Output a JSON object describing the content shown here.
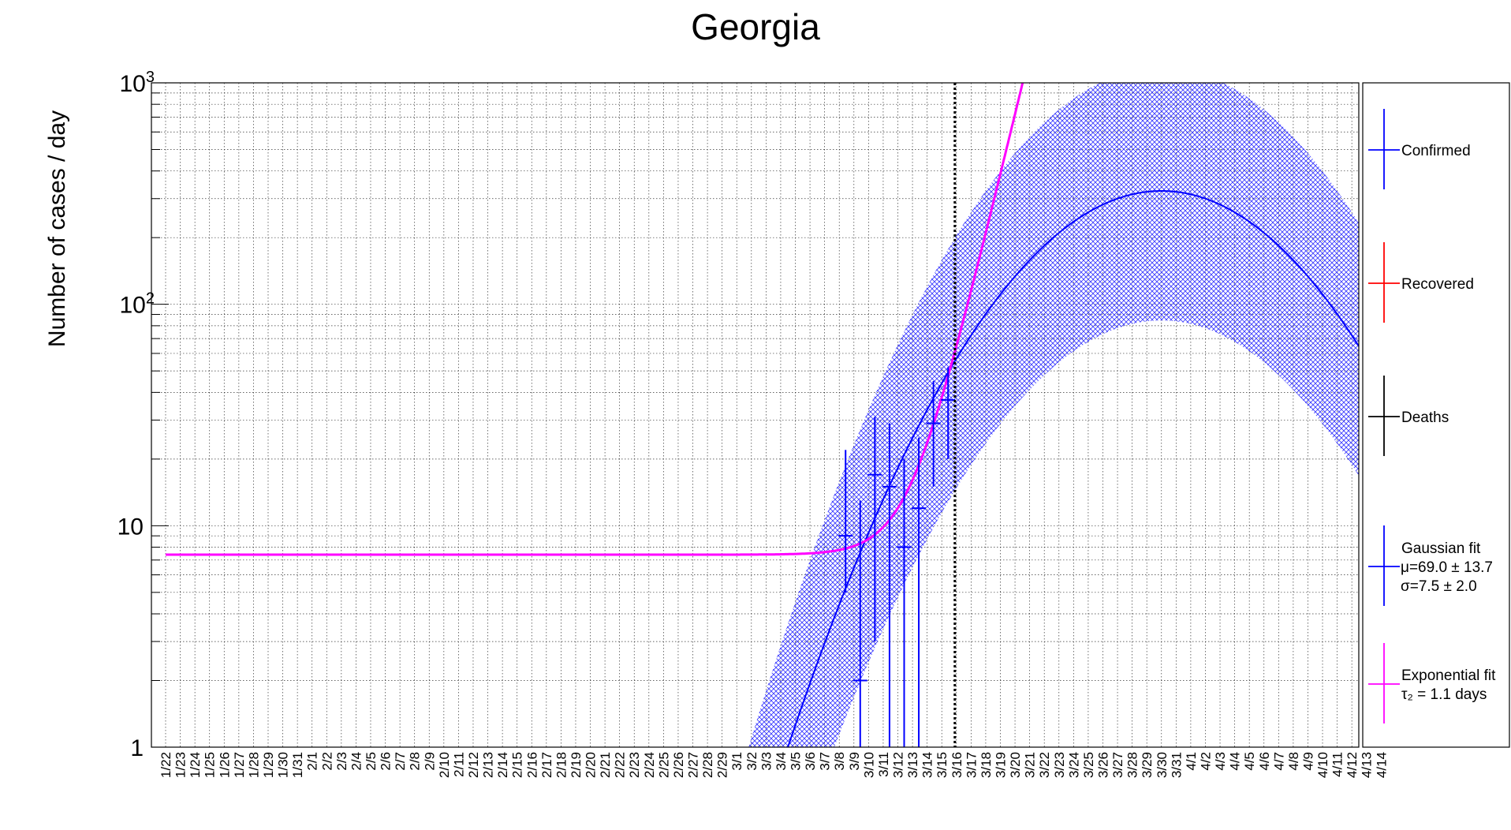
{
  "chart_data": {
    "type": "line",
    "title": "Georgia",
    "xlabel": "",
    "ylabel": "Number of cases / day",
    "y_scale": "log",
    "ylim": [
      1,
      1000
    ],
    "y_ticks": [
      {
        "value": 1,
        "label": "1"
      },
      {
        "value": 10,
        "label": "10"
      },
      {
        "value": 100,
        "label": "10",
        "sup": "2"
      },
      {
        "value": 1000,
        "label": "10",
        "sup": "3"
      }
    ],
    "grid": true,
    "legend_position": "right",
    "x_categories": [
      "1/22",
      "1/23",
      "1/24",
      "1/25",
      "1/26",
      "1/27",
      "1/28",
      "1/29",
      "1/30",
      "1/31",
      "2/1",
      "2/2",
      "2/3",
      "2/4",
      "2/5",
      "2/6",
      "2/7",
      "2/8",
      "2/9",
      "2/10",
      "2/11",
      "2/12",
      "2/13",
      "2/14",
      "2/15",
      "2/16",
      "2/17",
      "2/18",
      "2/19",
      "2/20",
      "2/21",
      "2/22",
      "2/23",
      "2/24",
      "2/25",
      "2/26",
      "2/27",
      "2/28",
      "2/29",
      "3/1",
      "3/2",
      "3/3",
      "3/4",
      "3/5",
      "3/6",
      "3/7",
      "3/8",
      "3/9",
      "3/10",
      "3/11",
      "3/12",
      "3/13",
      "3/14",
      "3/15",
      "3/16",
      "3/17",
      "3/18",
      "3/19",
      "3/20",
      "3/21",
      "3/22",
      "3/23",
      "3/24",
      "3/25",
      "3/26",
      "3/27",
      "3/28",
      "3/29",
      "3/30",
      "3/31",
      "4/1",
      "4/2",
      "4/3",
      "4/4",
      "4/5",
      "4/6",
      "4/7",
      "4/8",
      "4/9",
      "4/10",
      "4/11",
      "4/12",
      "4/13",
      "4/14"
    ],
    "fit_cutoff_date": "3/16",
    "confirmed": [
      {
        "date": "3/8",
        "value": 9,
        "err_low": 5,
        "err_high": 22
      },
      {
        "date": "3/9",
        "value": 2,
        "err_low": 1,
        "err_high": 13
      },
      {
        "date": "3/10",
        "value": 17,
        "err_low": 3,
        "err_high": 31
      },
      {
        "date": "3/11",
        "value": 15,
        "err_low": 1,
        "err_high": 29
      },
      {
        "date": "3/12",
        "value": 8,
        "err_low": 1,
        "err_high": 20
      },
      {
        "date": "3/13",
        "value": 12,
        "err_low": 1,
        "err_high": 25
      },
      {
        "date": "3/14",
        "value": 29,
        "err_low": 15,
        "err_high": 45
      },
      {
        "date": "3/15",
        "value": 37,
        "err_low": 20,
        "err_high": 52
      }
    ],
    "gaussian_fit": {
      "mu": 69.0,
      "sigma": 7.5,
      "peak": 325,
      "band_upper_factor": 3.6,
      "band_lower_factor": 0.26
    },
    "exponential_fit": {
      "baseline": 7.4,
      "doubling_time_days": 1.1,
      "value_at_3_15": 38
    },
    "series": [
      {
        "name": "Confirmed",
        "color": "#0000ff"
      },
      {
        "name": "Recovered",
        "color": "#ff0000"
      },
      {
        "name": "Deaths",
        "color": "#000000"
      },
      {
        "name": "Gaussian fit",
        "color": "#0000ff"
      },
      {
        "name": "Exponential fit",
        "color": "#ff00ff"
      }
    ],
    "legend": [
      {
        "name": "Confirmed",
        "color": "#0000ff",
        "lines": [
          "Confirmed"
        ]
      },
      {
        "name": "Recovered",
        "color": "#ff0000",
        "lines": [
          "Recovered"
        ]
      },
      {
        "name": "Deaths",
        "color": "#000000",
        "lines": [
          "Deaths"
        ]
      },
      {
        "name": "Gaussian fit",
        "color": "#0000ff",
        "lines": [
          "Gaussian fit",
          "μ=69.0 ± 13.7",
          "σ=7.5 ± 2.0"
        ]
      },
      {
        "name": "Exponential fit",
        "color": "#ff00ff",
        "lines": [
          "Exponential fit",
          "τ₂ = 1.1 days"
        ]
      }
    ]
  }
}
